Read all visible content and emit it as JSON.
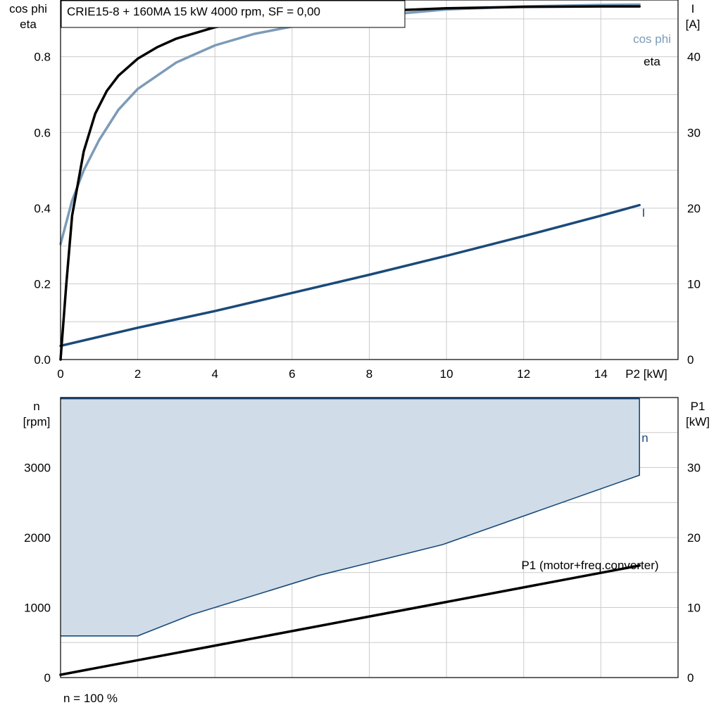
{
  "colors": {
    "eta": "#000000",
    "cos_phi": "#7b9bb8",
    "current": "#1a4a7a",
    "speed_fill": "#d0dce8",
    "speed_line": "#1a4a7a",
    "p1": "#000000",
    "grid": "#cccccc"
  },
  "chart_data": [
    {
      "type": "line",
      "title": "CRIE15-8 + 160MA   15 kW   4000 rpm, SF = 0,00",
      "xlabel": "P2 [kW]",
      "ylabel_left": [
        "cos phi",
        "eta"
      ],
      "ylabel_right": [
        "I",
        "[A]"
      ],
      "xlim": [
        0,
        16
      ],
      "ylim_left": [
        0,
        0.95
      ],
      "ylim_right": [
        0,
        47.5
      ],
      "x_ticks": [
        "0",
        "2",
        "4",
        "6",
        "8",
        "10",
        "12",
        "14"
      ],
      "y_left_ticks": [
        "0.0",
        "0.2",
        "0.4",
        "0.6",
        "0.8"
      ],
      "y_right_ticks": [
        "0",
        "10",
        "20",
        "30",
        "40"
      ],
      "grid": true,
      "series": [
        {
          "name": "eta",
          "axis": "left",
          "color": "#000000",
          "x": [
            0,
            0.15,
            0.3,
            0.6,
            0.9,
            1.2,
            1.5,
            2,
            2.5,
            3,
            4,
            5,
            6,
            7,
            8,
            10,
            12,
            14,
            15
          ],
          "y": [
            0.0,
            0.2,
            0.38,
            0.55,
            0.65,
            0.71,
            0.75,
            0.795,
            0.825,
            0.848,
            0.878,
            0.895,
            0.906,
            0.914,
            0.92,
            0.928,
            0.932,
            0.933,
            0.933
          ]
        },
        {
          "name": "cos phi",
          "axis": "left",
          "color": "#7b9bb8",
          "x": [
            0,
            0.3,
            0.6,
            1,
            1.5,
            2,
            3,
            4,
            5,
            6,
            7,
            8,
            10,
            12,
            14,
            15
          ],
          "y": [
            0.305,
            0.42,
            0.5,
            0.58,
            0.66,
            0.715,
            0.785,
            0.83,
            0.86,
            0.88,
            0.895,
            0.907,
            0.925,
            0.933,
            0.937,
            0.938
          ]
        },
        {
          "name": "I",
          "axis": "right",
          "color": "#1a4a7a",
          "x": [
            0,
            2,
            4,
            6,
            8,
            10,
            12,
            14,
            15
          ],
          "y": [
            1.8,
            4.2,
            6.4,
            8.8,
            11.2,
            13.7,
            16.3,
            19.0,
            20.4
          ]
        }
      ]
    },
    {
      "type": "area",
      "xlim": [
        0,
        16
      ],
      "ylabel_left": [
        "n",
        "[rpm]"
      ],
      "ylabel_right": [
        "P1",
        "[kW]"
      ],
      "ylim_left": [
        0,
        4000
      ],
      "ylim_right": [
        0,
        40
      ],
      "y_left_ticks": [
        "0",
        "1000",
        "2000",
        "3000"
      ],
      "y_right_ticks": [
        "0",
        "10",
        "20",
        "30"
      ],
      "footnote": "n = 100 %",
      "grid": true,
      "series": [
        {
          "name": "n",
          "axis": "left",
          "kind": "speed-envelope",
          "upper": {
            "x": [
              0,
              15
            ],
            "y": [
              3990,
              3990
            ]
          },
          "lower": {
            "x": [
              0,
              2,
              3.4,
              6.7,
              9.9,
              15
            ],
            "y": [
              595,
              595,
              900,
              1460,
              1900,
              2890
            ]
          }
        },
        {
          "name": "P1 (motor+freq.converter)",
          "axis": "right",
          "color": "#000000",
          "x": [
            0,
            15
          ],
          "y": [
            0.4,
            16.0
          ]
        }
      ]
    }
  ]
}
